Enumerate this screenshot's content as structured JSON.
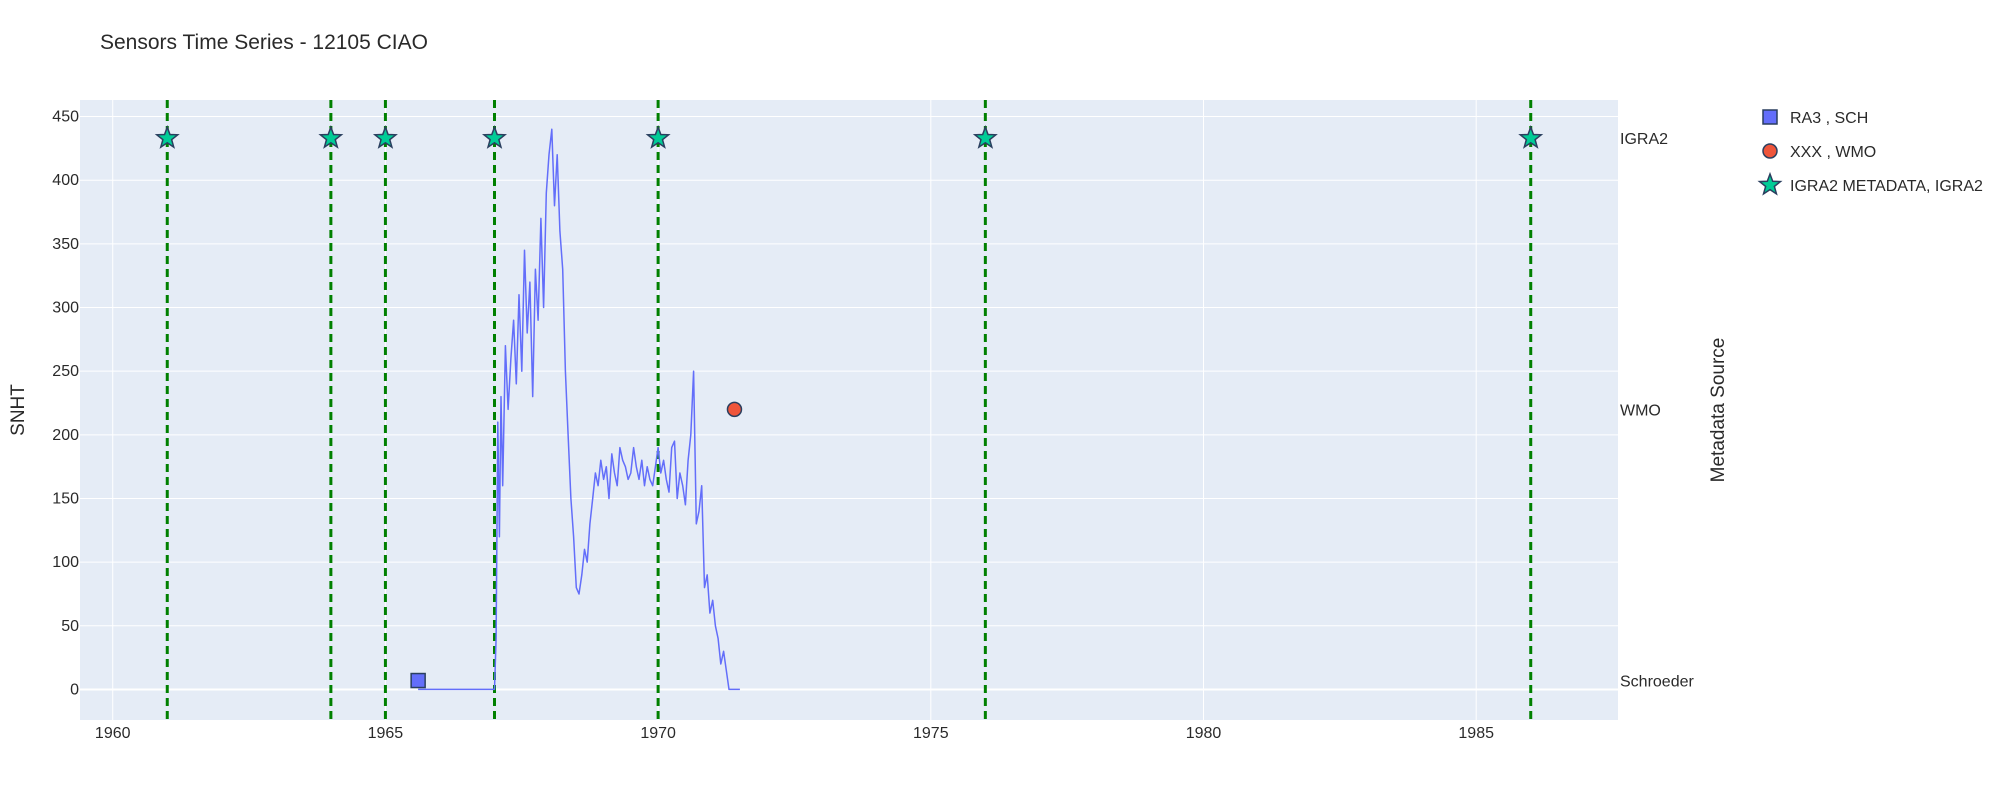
{
  "chart_data": {
    "type": "line",
    "title": "Sensors Time Series - 12105 CIAO",
    "ylabel": "SNHT",
    "y2label": "Metadata Source",
    "xlim": [
      1959.4,
      1987.6
    ],
    "ylim": [
      -24,
      463
    ],
    "x_ticks": [
      1960,
      1965,
      1970,
      1975,
      1980,
      1985
    ],
    "y_ticks": [
      0,
      50,
      100,
      150,
      200,
      250,
      300,
      350,
      400,
      450
    ],
    "right_labels": [
      {
        "label": "IGRA2",
        "y": 433
      },
      {
        "label": "WMO",
        "y": 220
      },
      {
        "label": "Schroeder",
        "y": 7
      }
    ],
    "grid": true,
    "legend_position": "top-right",
    "colors": {
      "plot_bg": "#e5ecf6",
      "snht_line": "#636efa",
      "igra2_marker": "#00cc96",
      "igra2_vline": "#008000",
      "wmo_marker": "#ef553b",
      "sch_marker": "#636efa"
    },
    "series": [
      {
        "name": "",
        "kind": "line",
        "x": [
          1965.6,
          1966.5,
          1967.0,
          1967.03,
          1967.06,
          1967.09,
          1967.12,
          1967.15,
          1967.2,
          1967.25,
          1967.3,
          1967.35,
          1967.4,
          1967.45,
          1967.5,
          1967.55,
          1967.6,
          1967.65,
          1967.7,
          1967.75,
          1967.8,
          1967.85,
          1967.9,
          1967.95,
          1968.0,
          1968.05,
          1968.1,
          1968.15,
          1968.2,
          1968.25,
          1968.3,
          1968.35,
          1968.4,
          1968.45,
          1968.5,
          1968.55,
          1968.6,
          1968.65,
          1968.7,
          1968.75,
          1968.8,
          1968.85,
          1968.9,
          1968.95,
          1969.0,
          1969.05,
          1969.1,
          1969.15,
          1969.2,
          1969.25,
          1969.3,
          1969.35,
          1969.4,
          1969.45,
          1969.5,
          1969.55,
          1969.6,
          1969.65,
          1969.7,
          1969.75,
          1969.8,
          1969.85,
          1969.9,
          1969.95,
          1970.0,
          1970.05,
          1970.1,
          1970.15,
          1970.2,
          1970.25,
          1970.3,
          1970.35,
          1970.4,
          1970.45,
          1970.5,
          1970.55,
          1970.6,
          1970.65,
          1970.7,
          1970.75,
          1970.8,
          1970.85,
          1970.9,
          1970.95,
          1971.0,
          1971.05,
          1971.1,
          1971.15,
          1971.2,
          1971.25,
          1971.3,
          1971.4,
          1971.5
        ],
        "values": [
          0,
          0,
          0,
          40,
          210,
          120,
          230,
          160,
          270,
          220,
          260,
          290,
          240,
          310,
          250,
          345,
          280,
          320,
          230,
          330,
          290,
          370,
          300,
          390,
          420,
          440,
          380,
          420,
          360,
          330,
          250,
          200,
          150,
          120,
          80,
          75,
          90,
          110,
          100,
          130,
          150,
          170,
          160,
          180,
          165,
          175,
          150,
          185,
          170,
          160,
          190,
          180,
          175,
          165,
          170,
          190,
          175,
          165,
          180,
          160,
          175,
          165,
          160,
          175,
          190,
          170,
          180,
          165,
          155,
          190,
          195,
          150,
          170,
          160,
          145,
          180,
          200,
          250,
          130,
          140,
          160,
          80,
          90,
          60,
          70,
          50,
          40,
          20,
          30,
          15,
          0,
          0,
          0
        ]
      },
      {
        "name": "RA3 , SCH",
        "kind": "marker",
        "symbol": "square",
        "x": [
          1965.6
        ],
        "values": [
          7
        ]
      },
      {
        "name": "XXX , WMO",
        "kind": "marker",
        "symbol": "circle",
        "x": [
          1971.4
        ],
        "values": [
          220
        ]
      },
      {
        "name": "IGRA2 METADATA, IGRA2",
        "kind": "marker",
        "symbol": "star",
        "x": [
          1961.0,
          1964.0,
          1965.0,
          1967.0,
          1970.0,
          1976.0,
          1986.0
        ],
        "values": [
          433,
          433,
          433,
          433,
          433,
          433,
          433
        ]
      }
    ]
  }
}
